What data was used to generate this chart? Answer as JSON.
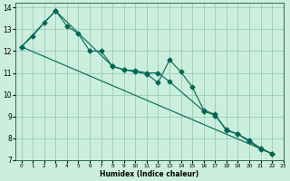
{
  "xlabel": "Humidex (Indice chaleur)",
  "background_color": "#cceedd",
  "grid_color": "#99ccbb",
  "line_color": "#006655",
  "xlim": [
    -0.5,
    23
  ],
  "ylim": [
    7,
    14.2
  ],
  "x_ticks": [
    0,
    1,
    2,
    3,
    4,
    5,
    6,
    7,
    8,
    9,
    10,
    11,
    12,
    13,
    14,
    15,
    16,
    17,
    18,
    19,
    20,
    21,
    22,
    23
  ],
  "y_ticks": [
    7,
    8,
    9,
    10,
    11,
    12,
    13,
    14
  ],
  "series1_x": [
    0,
    1,
    2,
    3,
    4,
    5,
    6,
    7,
    8,
    9,
    10,
    11,
    12,
    13,
    14,
    15,
    16,
    17,
    18,
    19,
    20,
    21,
    22
  ],
  "series1_y": [
    12.2,
    12.7,
    13.3,
    13.85,
    13.15,
    12.8,
    12.0,
    12.0,
    11.3,
    11.15,
    11.05,
    10.95,
    10.55,
    11.6,
    11.05,
    10.35,
    9.3,
    9.1,
    8.35,
    8.2,
    7.85,
    7.5,
    7.3
  ],
  "series2_x": [
    0,
    3,
    8,
    9,
    10,
    11,
    12,
    13,
    16,
    17,
    18,
    19,
    20,
    21,
    22
  ],
  "series2_y": [
    12.2,
    13.85,
    11.3,
    11.15,
    11.1,
    11.0,
    11.0,
    10.6,
    9.25,
    9.05,
    8.4,
    8.2,
    7.9,
    7.55,
    7.3
  ],
  "series3_x": [
    0,
    22
  ],
  "series3_y": [
    12.2,
    7.3
  ]
}
